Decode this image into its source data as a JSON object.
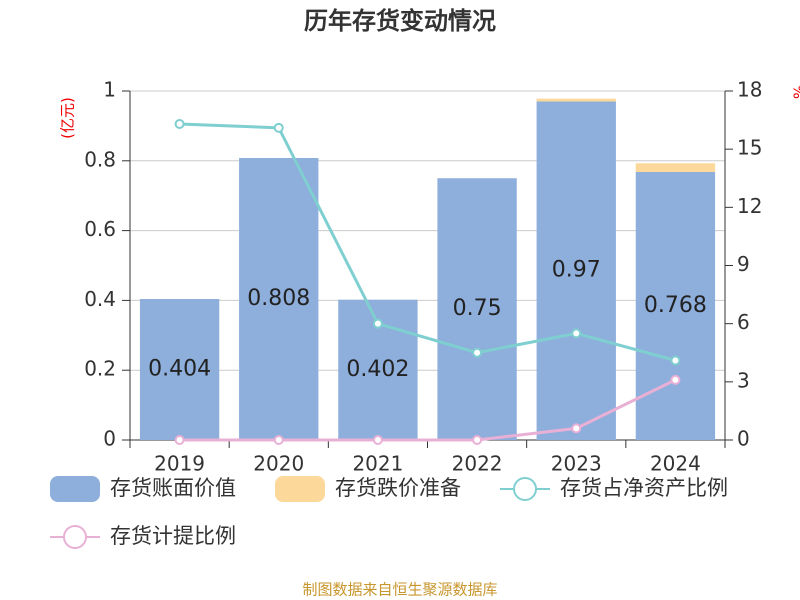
{
  "chart_data": {
    "type": "bar",
    "title": "历年存货变动情况",
    "ylabel": "(亿元)",
    "y2label": "%",
    "categories": [
      "2019",
      "2020",
      "2021",
      "2022",
      "2023",
      "2024"
    ],
    "stacked": true,
    "series": [
      {
        "name": "存货账面价值",
        "type": "bar",
        "color": "#8eaedb",
        "values": [
          0.404,
          0.808,
          0.402,
          0.75,
          0.97,
          0.768
        ],
        "data_labels": true
      },
      {
        "name": "存货跌价准备",
        "type": "bar",
        "color": "#fdd89b",
        "values": [
          0,
          0,
          0,
          0,
          0.008,
          0.025
        ]
      },
      {
        "name": "存货占净资产比例",
        "type": "line",
        "axis": "y2",
        "color": "#7fcfd1",
        "values": [
          16.3,
          16.1,
          6.0,
          4.5,
          5.5,
          4.1
        ]
      },
      {
        "name": "存货计提比例",
        "type": "line",
        "axis": "y2",
        "color": "#e9b0d6",
        "values": [
          0,
          0,
          0,
          0,
          0.6,
          3.1
        ]
      }
    ],
    "ylim": [
      0,
      1
    ],
    "yticks": [
      0,
      0.2,
      0.4,
      0.6,
      0.8,
      1
    ],
    "y2lim": [
      0,
      18
    ],
    "y2ticks": [
      0,
      3,
      6,
      9,
      12,
      15,
      18
    ],
    "grid": true,
    "source": "制图数据来自恒生聚源数据库"
  }
}
